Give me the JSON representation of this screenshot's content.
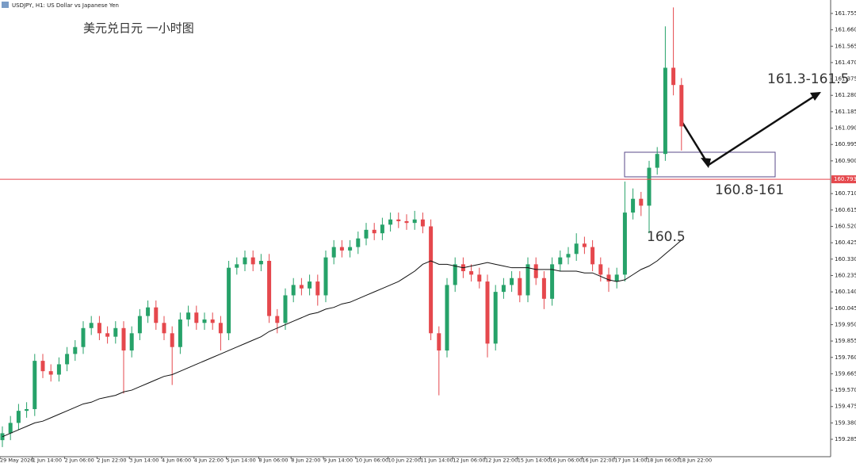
{
  "chart_data": {
    "type": "candlestick",
    "header": "USDJPY, H1:  US Dollar vs Japanese Yen",
    "title": "美元兑日元 一小时图",
    "annotations": [
      "161.3-161.5",
      "160.8-161",
      "160.5"
    ],
    "categories": [
      "29 May 2026",
      null,
      null,
      null,
      "1 Jun 14:00",
      null,
      null,
      null,
      "2 Jun 06:00",
      null,
      null,
      null,
      "2 Jun 22:00",
      null,
      null,
      null,
      "3 Jun 14:00",
      null,
      null,
      null,
      "4 Jun 06:00",
      null,
      null,
      null,
      "4 Jun 22:00",
      null,
      null,
      null,
      "5 Jun 14:00",
      null,
      null,
      null,
      "8 Jun 06:00",
      null,
      null,
      null,
      "8 Jun 22:00",
      null,
      null,
      null,
      "9 Jun 14:00",
      null,
      null,
      null,
      "10 Jun 06:00",
      null,
      null,
      null,
      "10 Jun 22:00",
      null,
      null,
      null,
      "11 Jun 14:00",
      null,
      null,
      null,
      "12 Jun 06:00",
      null,
      null,
      null,
      "12 Jun 22:00",
      null,
      null,
      null,
      "15 Jun 14:00",
      null,
      null,
      null,
      "16 Jun 06:00",
      null,
      null,
      null,
      "16 Jun 22:00",
      null,
      null,
      null,
      "17 Jun 14:00",
      null,
      null,
      null,
      "18 Jun 06:00",
      null,
      null,
      null,
      "18 Jun 22:00"
    ],
    "open": [
      159.28,
      159.32,
      159.38,
      159.45,
      159.46,
      159.74,
      159.68,
      159.66,
      159.72,
      159.78,
      159.82,
      159.93,
      159.96,
      159.9,
      159.88,
      159.93,
      159.8,
      159.9,
      160.0,
      160.05,
      159.96,
      159.9,
      159.82,
      159.98,
      160.02,
      159.96,
      159.98,
      159.96,
      159.9,
      160.28,
      160.3,
      160.34,
      160.3,
      160.32,
      160.0,
      159.96,
      160.12,
      160.18,
      160.16,
      160.2,
      160.12,
      160.34,
      160.4,
      160.38,
      160.4,
      160.45,
      160.5,
      160.48,
      160.53,
      160.56,
      160.55,
      160.54,
      160.56,
      160.52,
      159.9,
      159.8,
      160.18,
      160.3,
      160.26,
      160.24,
      160.2,
      159.84,
      160.14,
      160.18,
      160.22,
      160.12,
      160.3,
      160.22,
      160.1,
      160.3,
      160.34,
      160.36,
      160.42,
      160.4,
      160.3,
      160.24,
      160.2,
      160.24,
      160.6,
      160.68,
      160.64,
      160.86,
      160.94,
      161.44,
      161.34
    ],
    "high": [
      159.36,
      159.42,
      159.49,
      159.5,
      159.78,
      159.78,
      159.72,
      159.76,
      159.82,
      159.86,
      159.97,
      160.0,
      160.0,
      159.94,
      159.97,
      159.97,
      159.94,
      160.04,
      160.09,
      160.09,
      160.0,
      159.94,
      160.02,
      160.06,
      160.06,
      160.02,
      160.02,
      160.0,
      160.32,
      160.34,
      160.38,
      160.38,
      160.36,
      160.36,
      160.04,
      160.16,
      160.22,
      160.22,
      160.24,
      160.24,
      160.38,
      160.44,
      160.44,
      160.44,
      160.49,
      160.54,
      160.54,
      160.57,
      160.6,
      160.6,
      160.59,
      160.61,
      160.6,
      160.56,
      159.94,
      160.22,
      160.34,
      160.34,
      160.3,
      160.28,
      160.24,
      160.18,
      160.22,
      160.26,
      160.26,
      160.34,
      160.34,
      160.26,
      160.34,
      160.38,
      160.4,
      160.48,
      160.46,
      160.44,
      160.34,
      160.28,
      160.28,
      160.78,
      160.74,
      160.72,
      160.9,
      160.98,
      161.68,
      161.79,
      161.38
    ],
    "low": [
      159.24,
      159.28,
      159.34,
      159.41,
      159.42,
      159.64,
      159.62,
      159.62,
      159.68,
      159.74,
      159.78,
      159.89,
      159.86,
      159.84,
      159.84,
      159.55,
      159.76,
      159.86,
      159.96,
      159.92,
      159.86,
      159.6,
      159.78,
      159.94,
      159.92,
      159.92,
      159.92,
      159.8,
      159.86,
      160.24,
      160.26,
      160.26,
      160.26,
      159.96,
      159.9,
      159.92,
      160.08,
      160.12,
      160.12,
      160.06,
      160.08,
      160.3,
      160.34,
      160.34,
      160.36,
      160.41,
      160.44,
      160.44,
      160.49,
      160.51,
      160.5,
      160.5,
      160.48,
      159.86,
      159.54,
      159.76,
      160.14,
      160.22,
      160.2,
      160.16,
      159.76,
      159.8,
      160.1,
      160.14,
      160.08,
      160.08,
      160.18,
      160.04,
      160.06,
      160.26,
      160.3,
      160.32,
      160.36,
      160.26,
      160.2,
      160.14,
      160.16,
      160.2,
      160.56,
      160.58,
      160.48,
      160.82,
      160.9,
      161.28,
      160.96
    ],
    "close": [
      159.32,
      159.38,
      159.45,
      159.46,
      159.74,
      159.68,
      159.66,
      159.72,
      159.78,
      159.82,
      159.93,
      159.96,
      159.9,
      159.88,
      159.93,
      159.8,
      159.9,
      160.0,
      160.05,
      159.96,
      159.9,
      159.82,
      159.98,
      160.02,
      159.96,
      159.98,
      159.96,
      159.9,
      160.28,
      160.3,
      160.34,
      160.3,
      160.32,
      160.0,
      159.96,
      160.12,
      160.18,
      160.16,
      160.2,
      160.12,
      160.34,
      160.4,
      160.38,
      160.4,
      160.45,
      160.5,
      160.48,
      160.53,
      160.56,
      160.55,
      160.54,
      160.56,
      160.52,
      159.9,
      159.8,
      160.18,
      160.3,
      160.26,
      160.24,
      160.2,
      159.84,
      160.14,
      160.18,
      160.22,
      160.12,
      160.3,
      160.22,
      160.1,
      160.3,
      160.34,
      160.36,
      160.42,
      160.4,
      160.3,
      160.24,
      160.2,
      160.24,
      160.6,
      160.68,
      160.64,
      160.86,
      160.94,
      161.44,
      161.34,
      161.1
    ],
    "moving_average": [
      159.3,
      159.32,
      159.34,
      159.36,
      159.38,
      159.39,
      159.41,
      159.43,
      159.45,
      159.47,
      159.49,
      159.5,
      159.52,
      159.53,
      159.54,
      159.56,
      159.57,
      159.59,
      159.61,
      159.63,
      159.65,
      159.66,
      159.68,
      159.7,
      159.72,
      159.74,
      159.76,
      159.78,
      159.8,
      159.82,
      159.84,
      159.86,
      159.88,
      159.91,
      159.93,
      159.95,
      159.97,
      159.99,
      160.01,
      160.02,
      160.04,
      160.05,
      160.07,
      160.08,
      160.1,
      160.12,
      160.14,
      160.16,
      160.18,
      160.2,
      160.23,
      160.26,
      160.3,
      160.32,
      160.3,
      160.3,
      160.29,
      160.28,
      160.29,
      160.3,
      160.31,
      160.3,
      160.29,
      160.28,
      160.28,
      160.28,
      160.27,
      160.27,
      160.27,
      160.26,
      160.26,
      160.26,
      160.25,
      160.25,
      160.23,
      160.21,
      160.2,
      160.21,
      160.24,
      160.27,
      160.29,
      160.32,
      160.36,
      160.4,
      160.44
    ],
    "up_color": "#26a269",
    "down_color": "#e5484d",
    "ma_color": "#111111",
    "price_line": 160.793,
    "price_line_color": "#e5484d",
    "ylim": [
      159.184,
      161.833
    ],
    "yticks": [
      161.755,
      {
        "value": 161.66,
        "label": "161.660"
      },
      161.565,
      {
        "value": 161.47,
        "label": "161.470"
      },
      161.375,
      {
        "value": 161.28,
        "label": "161.280"
      },
      161.185,
      {
        "value": 161.09,
        "label": "161.090"
      },
      160.995,
      {
        "value": 160.9,
        "label": "160.900"
      },
      {
        "value": 160.71,
        "label": "160.710"
      },
      160.615,
      {
        "value": 160.52,
        "label": "160.520"
      },
      160.425,
      {
        "value": 160.33,
        "label": "160.330"
      },
      160.235,
      {
        "value": 160.14,
        "label": "160.140"
      },
      160.045,
      {
        "value": 159.95,
        "label": "159.950"
      },
      159.855,
      {
        "value": 159.76,
        "label": "159.760"
      },
      159.665,
      {
        "value": 159.57,
        "label": "159.570"
      },
      159.475,
      {
        "value": 159.38,
        "label": "159.380"
      },
      159.285
    ]
  }
}
